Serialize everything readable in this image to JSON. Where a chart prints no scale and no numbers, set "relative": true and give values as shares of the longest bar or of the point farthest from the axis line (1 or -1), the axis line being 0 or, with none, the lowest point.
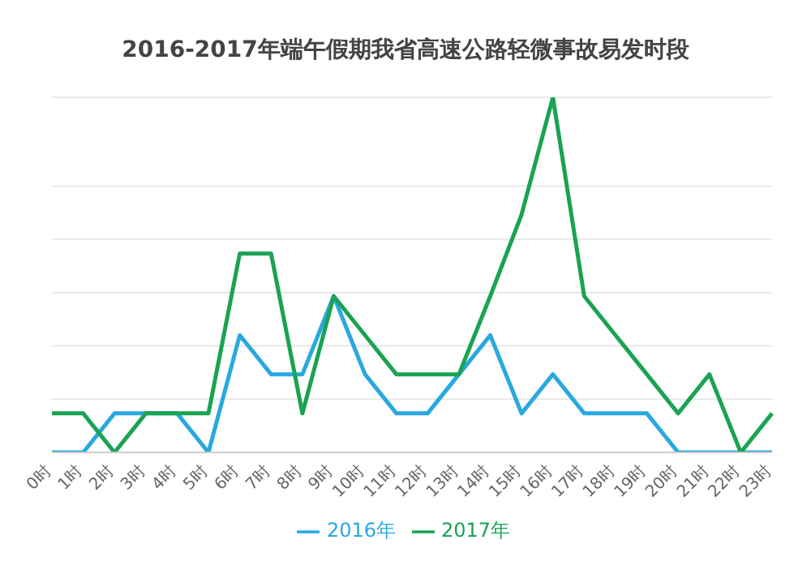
{
  "chart_data": {
    "type": "line",
    "title": "2016-2017年端午假期我省高速公路轻微事故易发时段",
    "relative": true,
    "categories": [
      "0时",
      "1时",
      "2时",
      "3时",
      "4时",
      "5时",
      "6时",
      "7时",
      "8时",
      "9时",
      "10时",
      "11时",
      "12时",
      "13时",
      "14时",
      "15时",
      "16时",
      "17时",
      "18时",
      "19时",
      "20时",
      "21时",
      "22时",
      "23时"
    ],
    "series": [
      {
        "name": "2016年",
        "color": "#29a8e0",
        "values": [
          0,
          0,
          0.11,
          0.11,
          0.11,
          0,
          0.33,
          0.22,
          0.22,
          0.44,
          0.22,
          0.11,
          0.11,
          0.22,
          0.33,
          0.11,
          0.22,
          0.11,
          0.11,
          0.11,
          0,
          0,
          0,
          0
        ]
      },
      {
        "name": "2017年",
        "color": "#1aa352",
        "values": [
          0.11,
          0.11,
          0,
          0.11,
          0.11,
          0.11,
          0.56,
          0.56,
          0.11,
          0.44,
          0.33,
          0.22,
          0.22,
          0.22,
          0.44,
          0.67,
          1,
          0.44,
          0.33,
          0.22,
          0.11,
          0.22,
          0,
          0.11
        ]
      }
    ],
    "grid": "y",
    "legend": "bottom",
    "marker": "none",
    "line_style": "solid"
  }
}
